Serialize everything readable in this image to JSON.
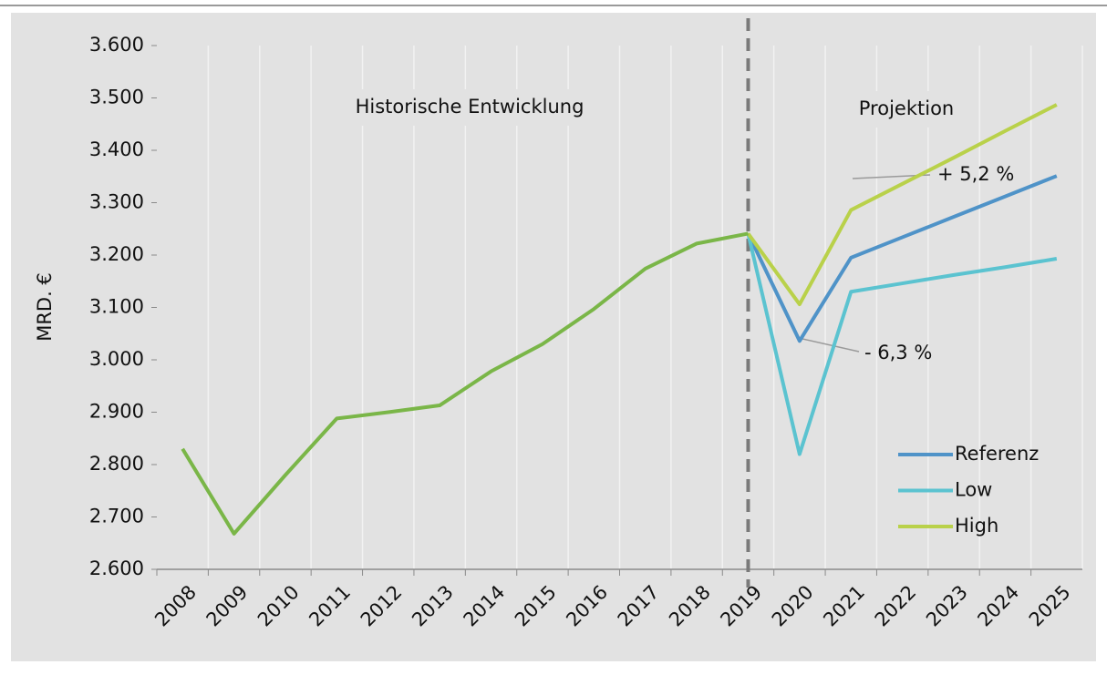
{
  "chart_data": {
    "type": "line",
    "y_label": "MRD. €",
    "annotations": [
      "Historische Entwicklung",
      "Projektion",
      "+ 5,2 %",
      "- 6,3 %"
    ],
    "categories": [
      "2008",
      "2009",
      "2010",
      "2011",
      "2012",
      "2013",
      "2014",
      "2015",
      "2016",
      "2017",
      "2018",
      "2019",
      "2020",
      "2021",
      "2022",
      "2023",
      "2024",
      "2025"
    ],
    "series": [
      {
        "color": "#7ab648",
        "values": [
          2830,
          2668,
          2780,
          2888,
          2900,
          2913,
          2978,
          3030,
          3097,
          3174,
          3222,
          3241,
          null,
          null,
          null,
          null,
          null,
          null
        ]
      },
      {
        "name": "Referenz",
        "color": "#4f93c8",
        "values": [
          null,
          null,
          null,
          null,
          null,
          null,
          null,
          null,
          null,
          null,
          null,
          3241,
          3036,
          3195,
          3234,
          3273,
          3312,
          3351
        ]
      },
      {
        "name": "Low",
        "color": "#5bc3d0",
        "values": [
          null,
          null,
          null,
          null,
          null,
          null,
          null,
          null,
          null,
          null,
          null,
          3241,
          2820,
          3130,
          3146,
          3162,
          3177,
          3193
        ]
      },
      {
        "name": "High",
        "color": "#b9d14a",
        "values": [
          null,
          null,
          null,
          null,
          null,
          null,
          null,
          null,
          null,
          null,
          null,
          3241,
          3106,
          3286,
          3336,
          3386,
          3437,
          3487
        ]
      }
    ],
    "ylim": [
      2600,
      3600
    ],
    "yticks": [
      {
        "value": 2600,
        "label": "2.600"
      },
      {
        "value": 2700,
        "label": "2.700"
      },
      {
        "value": 2800,
        "label": "2.800"
      },
      {
        "value": 2900,
        "label": "2.900"
      },
      {
        "value": 3000,
        "label": "3.000"
      },
      {
        "value": 3100,
        "label": "3.100"
      },
      {
        "value": 3200,
        "label": "3.200"
      },
      {
        "value": 3300,
        "label": "3.300"
      },
      {
        "value": 3400,
        "label": "3.400"
      },
      {
        "value": 3500,
        "label": "3.500"
      },
      {
        "value": 3600,
        "label": "3.600"
      }
    ],
    "legend": "lower right"
  }
}
